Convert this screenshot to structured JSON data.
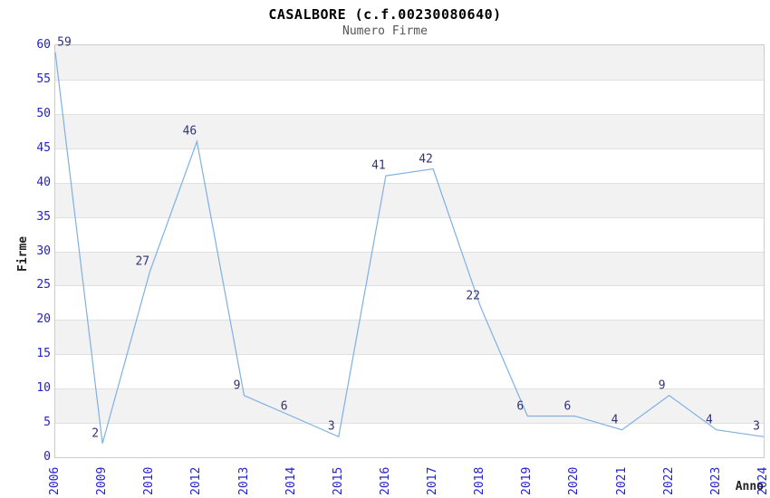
{
  "title": "CASALBORE (c.f.00230080640)",
  "subtitle": "Numero Firme",
  "chart_data": {
    "type": "line",
    "title": "CASALBORE (c.f.00230080640)",
    "subtitle": "Numero Firme",
    "xlabel": "Anno",
    "ylabel": "Firme",
    "categories": [
      "2006",
      "2009",
      "2010",
      "2012",
      "2013",
      "2014",
      "2015",
      "2016",
      "2017",
      "2018",
      "2019",
      "2020",
      "2021",
      "2022",
      "2023",
      "2024"
    ],
    "values": [
      59,
      2,
      27,
      46,
      9,
      6,
      3,
      41,
      42,
      22,
      6,
      6,
      4,
      9,
      4,
      3
    ],
    "ylim": [
      0,
      60
    ],
    "ytick_step": 5,
    "ytick_labels": [
      "0",
      "5",
      "10",
      "15",
      "20",
      "25",
      "30",
      "35",
      "40",
      "45",
      "50",
      "55",
      "60"
    ],
    "grid": "horizontal-alternating-bands",
    "legend": "none",
    "point_labels_shown": true
  },
  "colors": {
    "line": "#7fb0e4",
    "tick_label": "#2222cc",
    "data_label": "#333377",
    "band": "#f2f2f2",
    "grid_line": "#e0e0e0",
    "plot_border": "#cccccc",
    "title": "#000000",
    "subtitle": "#555555",
    "axis_title": "#222222",
    "background": "#ffffff"
  }
}
